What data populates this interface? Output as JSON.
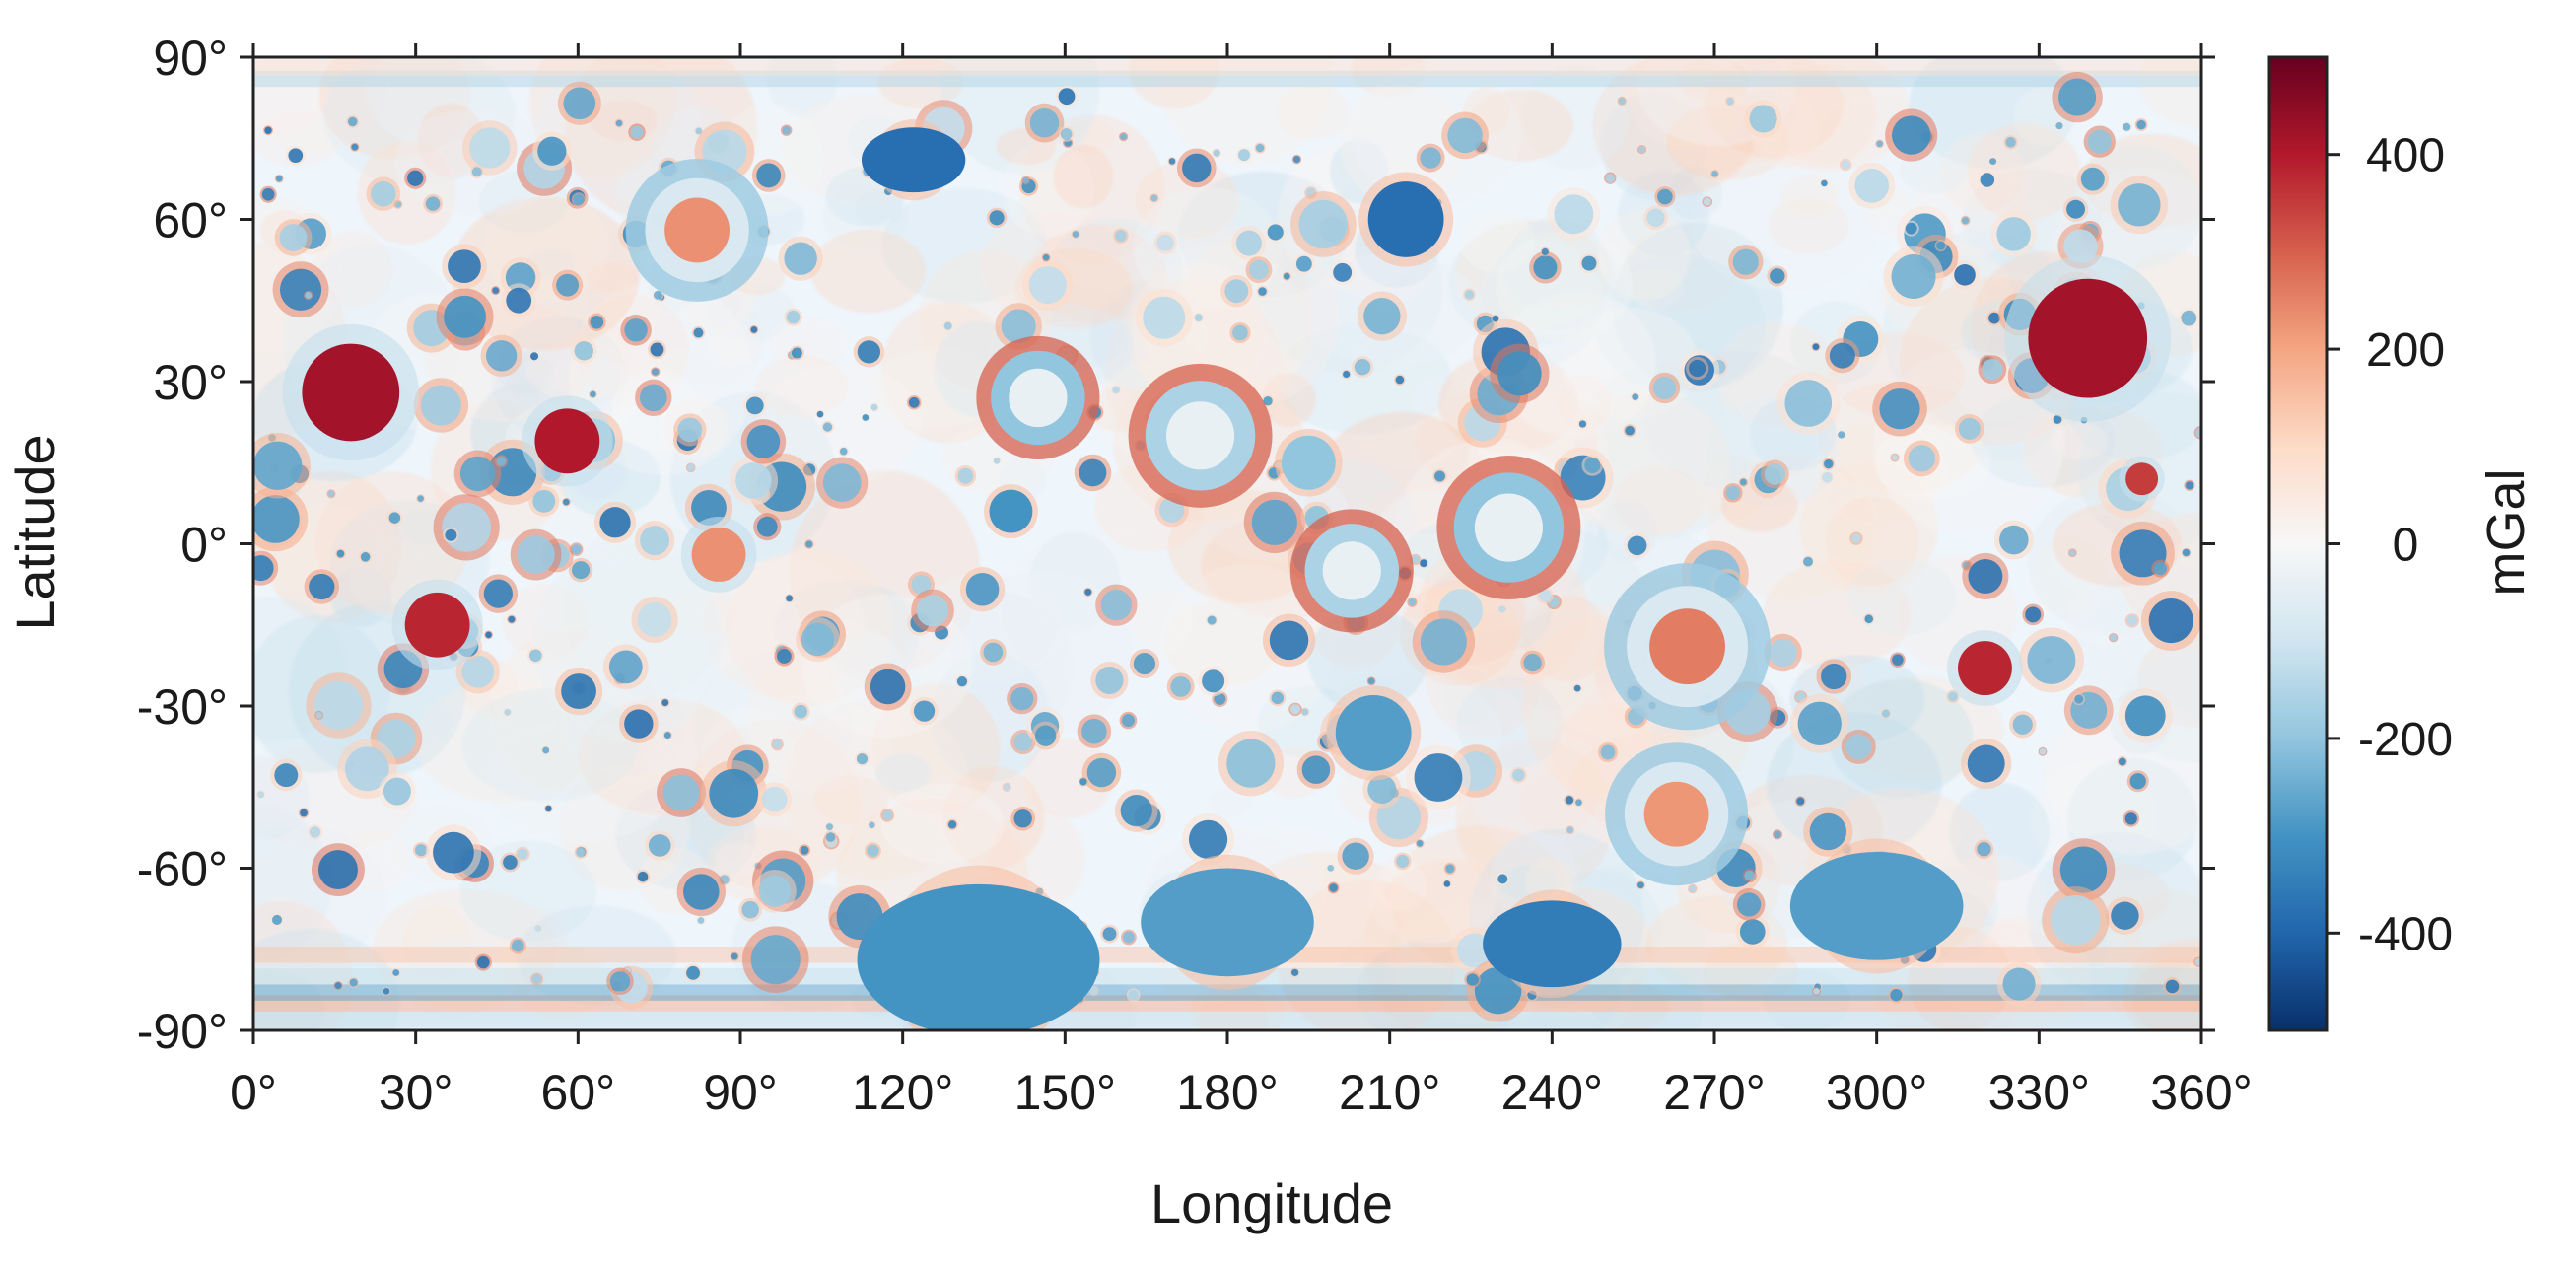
{
  "chart_data": {
    "type": "heatmap",
    "map_type": "global gravity anomaly map (equirectangular)",
    "xlabel": "Longitude",
    "ylabel": "Latitude",
    "xlim": [
      0,
      360
    ],
    "ylim": [
      -90,
      90
    ],
    "x_ticks": [
      0,
      30,
      60,
      90,
      120,
      150,
      180,
      210,
      240,
      270,
      300,
      330,
      360
    ],
    "x_tick_labels": [
      "0°",
      "30°",
      "60°",
      "90°",
      "120°",
      "150°",
      "180°",
      "210°",
      "240°",
      "270°",
      "300°",
      "330°",
      "360°"
    ],
    "y_ticks": [
      90,
      60,
      30,
      0,
      -30,
      -60,
      -90
    ],
    "y_tick_labels": [
      "90°",
      "60°",
      "30°",
      "0°",
      "-30°",
      "-60°",
      "-90°"
    ],
    "grid": false,
    "colorbar": {
      "label": "mGal",
      "range": [
        -500,
        500
      ],
      "ticks": [
        400,
        200,
        0,
        -200,
        -400
      ],
      "tick_labels": [
        "400",
        "200",
        "0",
        "-200",
        "-400"
      ],
      "colormap": "diverging red-white-blue (RdBu_r)",
      "stops": [
        "#08306b",
        "#2166ac",
        "#4393c3",
        "#92c5de",
        "#d1e5f0",
        "#f7f7f7",
        "#fddbc7",
        "#f4a582",
        "#d6604d",
        "#b2182b",
        "#67001f"
      ]
    },
    "features": [
      {
        "lon": 18,
        "lat": 28,
        "r": 9,
        "value": 420,
        "type": "mascon"
      },
      {
        "lon": 58,
        "lat": 19,
        "r": 6,
        "value": 400,
        "type": "mascon"
      },
      {
        "lon": 34,
        "lat": -15,
        "r": 6,
        "value": 380,
        "type": "mascon"
      },
      {
        "lon": 86,
        "lat": -2,
        "r": 5,
        "value": 230,
        "type": "mascon"
      },
      {
        "lon": 82,
        "lat": 58,
        "r": 6,
        "value": 230,
        "type": "ringed-mascon"
      },
      {
        "lon": 339,
        "lat": 38,
        "r": 11,
        "value": 420,
        "type": "mascon"
      },
      {
        "lon": 320,
        "lat": -23,
        "r": 5,
        "value": 380,
        "type": "mascon"
      },
      {
        "lon": 349,
        "lat": 12,
        "r": 3,
        "value": 350,
        "type": "mascon"
      },
      {
        "lon": 265,
        "lat": -19,
        "r": 7,
        "value": 260,
        "type": "ringed-mascon"
      },
      {
        "lon": 263,
        "lat": -50,
        "r": 6,
        "value": 220,
        "type": "ringed-mascon"
      },
      {
        "lon": 145,
        "lat": 27,
        "r": 6,
        "value": -200,
        "type": "ringed-basin"
      },
      {
        "lon": 175,
        "lat": 20,
        "r": 7,
        "value": -160,
        "type": "ringed-basin"
      },
      {
        "lon": 232,
        "lat": 3,
        "r": 7,
        "value": -200,
        "type": "ringed-basin"
      },
      {
        "lon": 203,
        "lat": -5,
        "r": 6,
        "value": -160,
        "type": "ringed-basin"
      },
      {
        "lon": 207,
        "lat": -35,
        "r": 7,
        "value": -280,
        "type": "basin"
      },
      {
        "lon": 213,
        "lat": 60,
        "r": 7,
        "value": -380,
        "type": "basin"
      },
      {
        "lon": 122,
        "lat": 71,
        "r": 6,
        "value": -380,
        "type": "basin"
      },
      {
        "lon": 134,
        "lat": -77,
        "r": 14,
        "value": -300,
        "type": "basin"
      },
      {
        "lon": 300,
        "lat": -67,
        "r": 10,
        "value": -280,
        "type": "basin"
      },
      {
        "lon": 240,
        "lat": -74,
        "r": 8,
        "value": -350,
        "type": "basin"
      },
      {
        "lon": 180,
        "lat": -70,
        "r": 10,
        "value": -280,
        "type": "basin"
      },
      {
        "lon": 140,
        "lat": 6,
        "r": 4,
        "value": -300,
        "type": "basin"
      },
      {
        "lon": 195,
        "lat": 15,
        "r": 5,
        "value": -200,
        "type": "basin"
      }
    ]
  }
}
